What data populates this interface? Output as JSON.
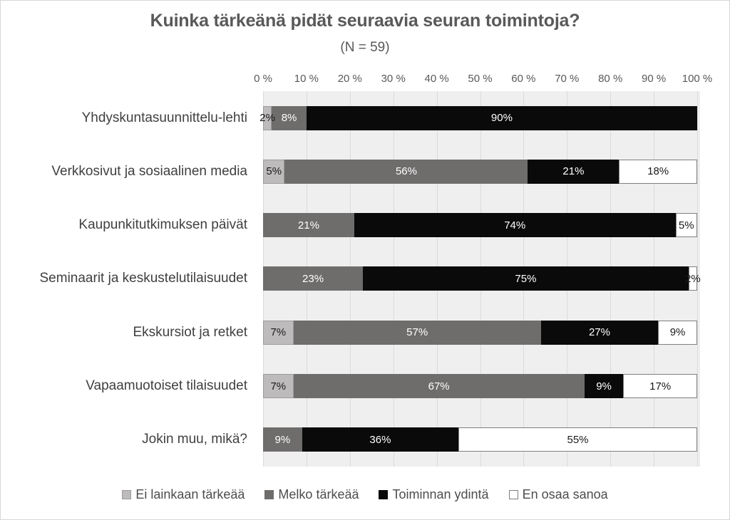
{
  "chart_data": {
    "type": "bar",
    "variant": "horizontal-stacked-100",
    "title": "Kuinka tärkeänä pidät seuraavia seuran toimintoja?",
    "subtitle": "(N = 59)",
    "categories": [
      "Yhdyskuntasuunnittelu-lehti",
      "Verkkosivut ja sosiaalinen media",
      "Kaupunkitutkimuksen päivät",
      "Seminaarit ja keskustelutilaisuudet",
      "Ekskursiot ja retket",
      "Vapaamuotoiset tilaisuudet",
      "Jokin muu, mikä?"
    ],
    "series": [
      {
        "name": "Ei lainkaan tärkeää",
        "color": "#bdbbbb",
        "border_color": "#9c9a9a",
        "label_color": "#1a1a1a",
        "values": [
          2,
          5,
          0,
          0,
          7,
          7,
          0
        ]
      },
      {
        "name": "Melko tärkeää",
        "color": "#6f6c6c",
        "border_color": "#6f6c6c",
        "label_color": "#ffffff",
        "values": [
          8,
          56,
          21,
          23,
          57,
          67,
          9
        ]
      },
      {
        "name": "Toiminnan ydintä",
        "color": "#0a0a0a",
        "border_color": "#0a0a0a",
        "label_color": "#ffffff",
        "values": [
          90,
          21,
          74,
          75,
          27,
          9,
          36
        ]
      },
      {
        "name": "En osaa sanoa",
        "color": "#ffffff",
        "border_color": "#7f7f7f",
        "label_color": "#1a1a1a",
        "values": [
          0,
          18,
          5,
          2,
          9,
          17,
          55
        ]
      }
    ],
    "x_ticks": [
      "0 %",
      "10 %",
      "20 %",
      "30 %",
      "40 %",
      "50 %",
      "60 %",
      "70 %",
      "80 %",
      "90 %",
      "100 %"
    ],
    "xlim": [
      0,
      100
    ],
    "grid": true,
    "gridline_color": "#dbdbdb",
    "plot_background": "#f0efef",
    "legend_position": "bottom",
    "value_label_suffix": "%"
  }
}
